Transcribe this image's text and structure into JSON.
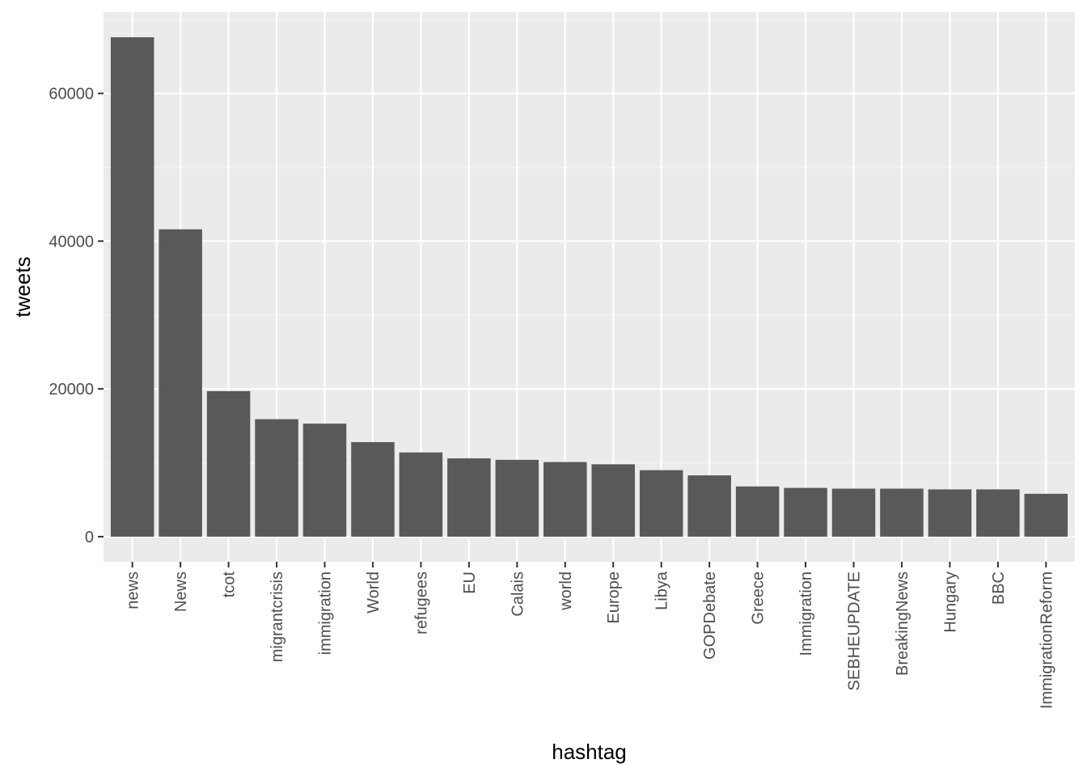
{
  "chart_data": {
    "type": "bar",
    "title": "",
    "xlabel": "hashtag",
    "ylabel": "tweets",
    "categories": [
      "news",
      "News",
      "tcot",
      "migrantcrisis",
      "immigration",
      "World",
      "refugees",
      "EU",
      "Calais",
      "world",
      "Europe",
      "Libya",
      "GOPDebate",
      "Greece",
      "Immigration",
      "SEBHEUPDATE",
      "BreakingNews",
      "Hungary",
      "BBC",
      "ImmigrationReform"
    ],
    "values": [
      67600,
      41600,
      19700,
      15900,
      15300,
      12800,
      11400,
      10600,
      10400,
      10100,
      9800,
      9000,
      8300,
      6800,
      6600,
      6500,
      6500,
      6400,
      6400,
      5800
    ],
    "ylim": [
      -3400,
      71000
    ],
    "yticks": [
      0,
      20000,
      40000,
      60000
    ],
    "ytick_labels": [
      "0",
      "20000",
      "40000",
      "60000"
    ],
    "grid": true,
    "legend": "none",
    "colors": {
      "panel_background": "#ebebeb",
      "grid_major": "#ffffff",
      "grid_minor": "#f5f5f5",
      "bar_fill": "#595959",
      "tick_text": "#4d4d4d",
      "axis_title_text": "#000000"
    }
  }
}
